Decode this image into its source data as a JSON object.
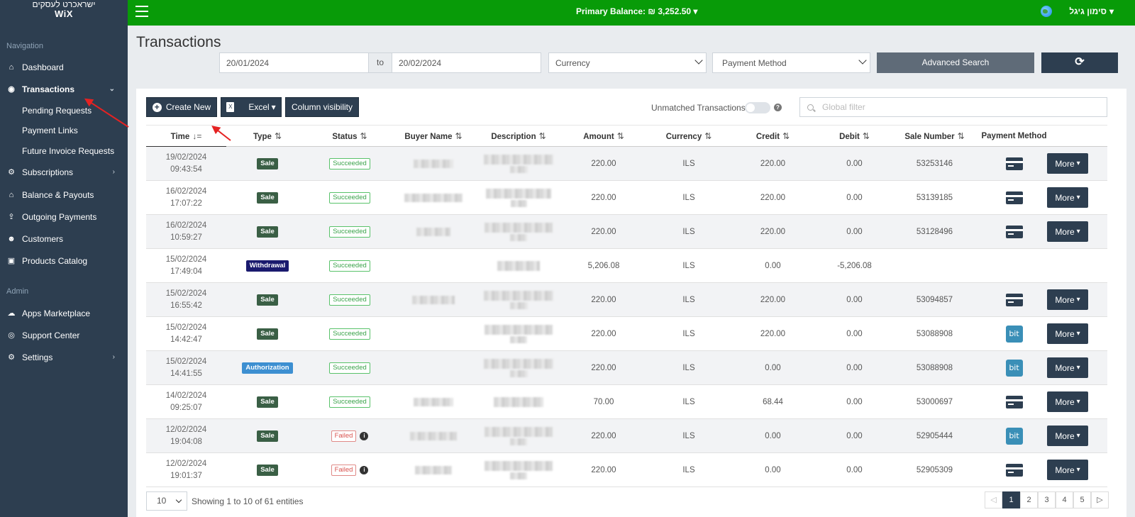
{
  "sidebar": {
    "brand_hebrew": "ישראכרט לעסקים",
    "brand_wix": "WiX",
    "nav_title": "Navigation",
    "admin_title": "Admin",
    "items": [
      {
        "label": "Dashboard",
        "icon": "home-icon"
      },
      {
        "label": "Transactions",
        "icon": "transactions-icon"
      },
      {
        "label": "Pending Requests"
      },
      {
        "label": "Payment Links"
      },
      {
        "label": "Future Invoice Requests"
      },
      {
        "label": "Subscriptions",
        "icon": "subscriptions-icon"
      },
      {
        "label": "Balance & Payouts",
        "icon": "bank-icon"
      },
      {
        "label": "Outgoing Payments",
        "icon": "outgoing-icon"
      },
      {
        "label": "Customers",
        "icon": "users-icon"
      },
      {
        "label": "Products Catalog",
        "icon": "bag-icon"
      },
      {
        "label": "Apps Marketplace",
        "icon": "cloud-icon"
      },
      {
        "label": "Support Center",
        "icon": "lifebuoy-icon"
      },
      {
        "label": "Settings",
        "icon": "gear-icon"
      }
    ]
  },
  "topbar": {
    "balance_label": "Primary Balance:",
    "balance_value": "₪ 3,252.50",
    "user_name": "סימון גיגל"
  },
  "page": {
    "title": "Transactions",
    "date_from": "20/01/2024",
    "date_to_label": "to",
    "date_to": "20/02/2024",
    "currency_placeholder": "Currency",
    "payment_method_placeholder": "Payment Method",
    "advanced_search": "Advanced Search",
    "refresh_glyph": "⟳"
  },
  "toolbar": {
    "create_new": "Create New",
    "excel": "Excel",
    "column_visibility": "Column visibility",
    "unmatched": "Unmatched Transactions",
    "global_filter_placeholder": "Global filter"
  },
  "table": {
    "headers": [
      "Time",
      "Type",
      "Status",
      "Buyer Name",
      "Description",
      "Amount",
      "Currency",
      "Credit",
      "Debit",
      "Sale Number",
      "Payment Method"
    ],
    "more_label": "More",
    "rows": [
      {
        "date": "19/02/2024",
        "time": "09:43:54",
        "type": "Sale",
        "status": "Succeeded",
        "amount": "220.00",
        "currency": "ILS",
        "credit": "220.00",
        "debit": "0.00",
        "sale": "53253146",
        "method": "card"
      },
      {
        "date": "16/02/2024",
        "time": "17:07:22",
        "type": "Sale",
        "status": "Succeeded",
        "amount": "220.00",
        "currency": "ILS",
        "credit": "220.00",
        "debit": "0.00",
        "sale": "53139185",
        "method": "card"
      },
      {
        "date": "16/02/2024",
        "time": "10:59:27",
        "type": "Sale",
        "status": "Succeeded",
        "amount": "220.00",
        "currency": "ILS",
        "credit": "220.00",
        "debit": "0.00",
        "sale": "53128496",
        "method": "card"
      },
      {
        "date": "15/02/2024",
        "time": "17:49:04",
        "type": "Withdrawal",
        "status": "Succeeded",
        "amount": "5,206.08",
        "currency": "ILS",
        "credit": "0.00",
        "debit": "-5,206.08",
        "sale": "",
        "method": ""
      },
      {
        "date": "15/02/2024",
        "time": "16:55:42",
        "type": "Sale",
        "status": "Succeeded",
        "amount": "220.00",
        "currency": "ILS",
        "credit": "220.00",
        "debit": "0.00",
        "sale": "53094857",
        "method": "card"
      },
      {
        "date": "15/02/2024",
        "time": "14:42:47",
        "type": "Sale",
        "status": "Succeeded",
        "amount": "220.00",
        "currency": "ILS",
        "credit": "220.00",
        "debit": "0.00",
        "sale": "53088908",
        "method": "bit"
      },
      {
        "date": "15/02/2024",
        "time": "14:41:55",
        "type": "Authorization",
        "status": "Succeeded",
        "amount": "220.00",
        "currency": "ILS",
        "credit": "0.00",
        "debit": "0.00",
        "sale": "53088908",
        "method": "bit"
      },
      {
        "date": "14/02/2024",
        "time": "09:25:07",
        "type": "Sale",
        "status": "Succeeded",
        "amount": "70.00",
        "currency": "ILS",
        "credit": "68.44",
        "debit": "0.00",
        "sale": "53000697",
        "method": "card"
      },
      {
        "date": "12/02/2024",
        "time": "19:04:08",
        "type": "Sale",
        "status": "Failed",
        "amount": "220.00",
        "currency": "ILS",
        "credit": "0.00",
        "debit": "0.00",
        "sale": "52905444",
        "method": "bit"
      },
      {
        "date": "12/02/2024",
        "time": "19:01:37",
        "type": "Sale",
        "status": "Failed",
        "amount": "220.00",
        "currency": "ILS",
        "credit": "0.00",
        "debit": "0.00",
        "sale": "52905309",
        "method": "card"
      }
    ]
  },
  "footer": {
    "page_size": "10",
    "showing": "Showing 1 to 10 of 61 entities",
    "pages": [
      "1",
      "2",
      "3",
      "4",
      "5"
    ],
    "current_page": "1"
  },
  "colors": {
    "topbar": "#089b08",
    "sidebar": "#2d3e50",
    "accent_dark": "#2d3e50",
    "annotation_arrow": "#e52222"
  }
}
